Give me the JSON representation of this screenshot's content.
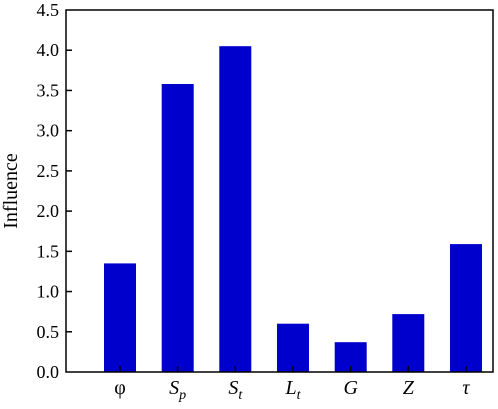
{
  "chart_data": {
    "type": "bar",
    "categories": [
      {
        "main": "φ",
        "sub": "",
        "italic": false
      },
      {
        "main": "S",
        "sub": "p",
        "italic": true
      },
      {
        "main": "S",
        "sub": "t",
        "italic": true
      },
      {
        "main": "L",
        "sub": "t",
        "italic": true
      },
      {
        "main": "G",
        "sub": "",
        "italic": true
      },
      {
        "main": "Z",
        "sub": "",
        "italic": true
      },
      {
        "main": "τ",
        "sub": "",
        "italic": true
      }
    ],
    "values": [
      1.35,
      3.58,
      4.05,
      0.6,
      0.37,
      0.72,
      1.59
    ],
    "title": "",
    "xlabel": "",
    "ylabel": "Influence",
    "ylim": [
      0,
      4.5
    ],
    "yticks": [
      "0.0",
      "0.5",
      "1.0",
      "1.5",
      "2.0",
      "2.5",
      "3.0",
      "3.5",
      "4.0",
      "4.5"
    ],
    "grid": false,
    "bar_color": "#0000CC"
  }
}
